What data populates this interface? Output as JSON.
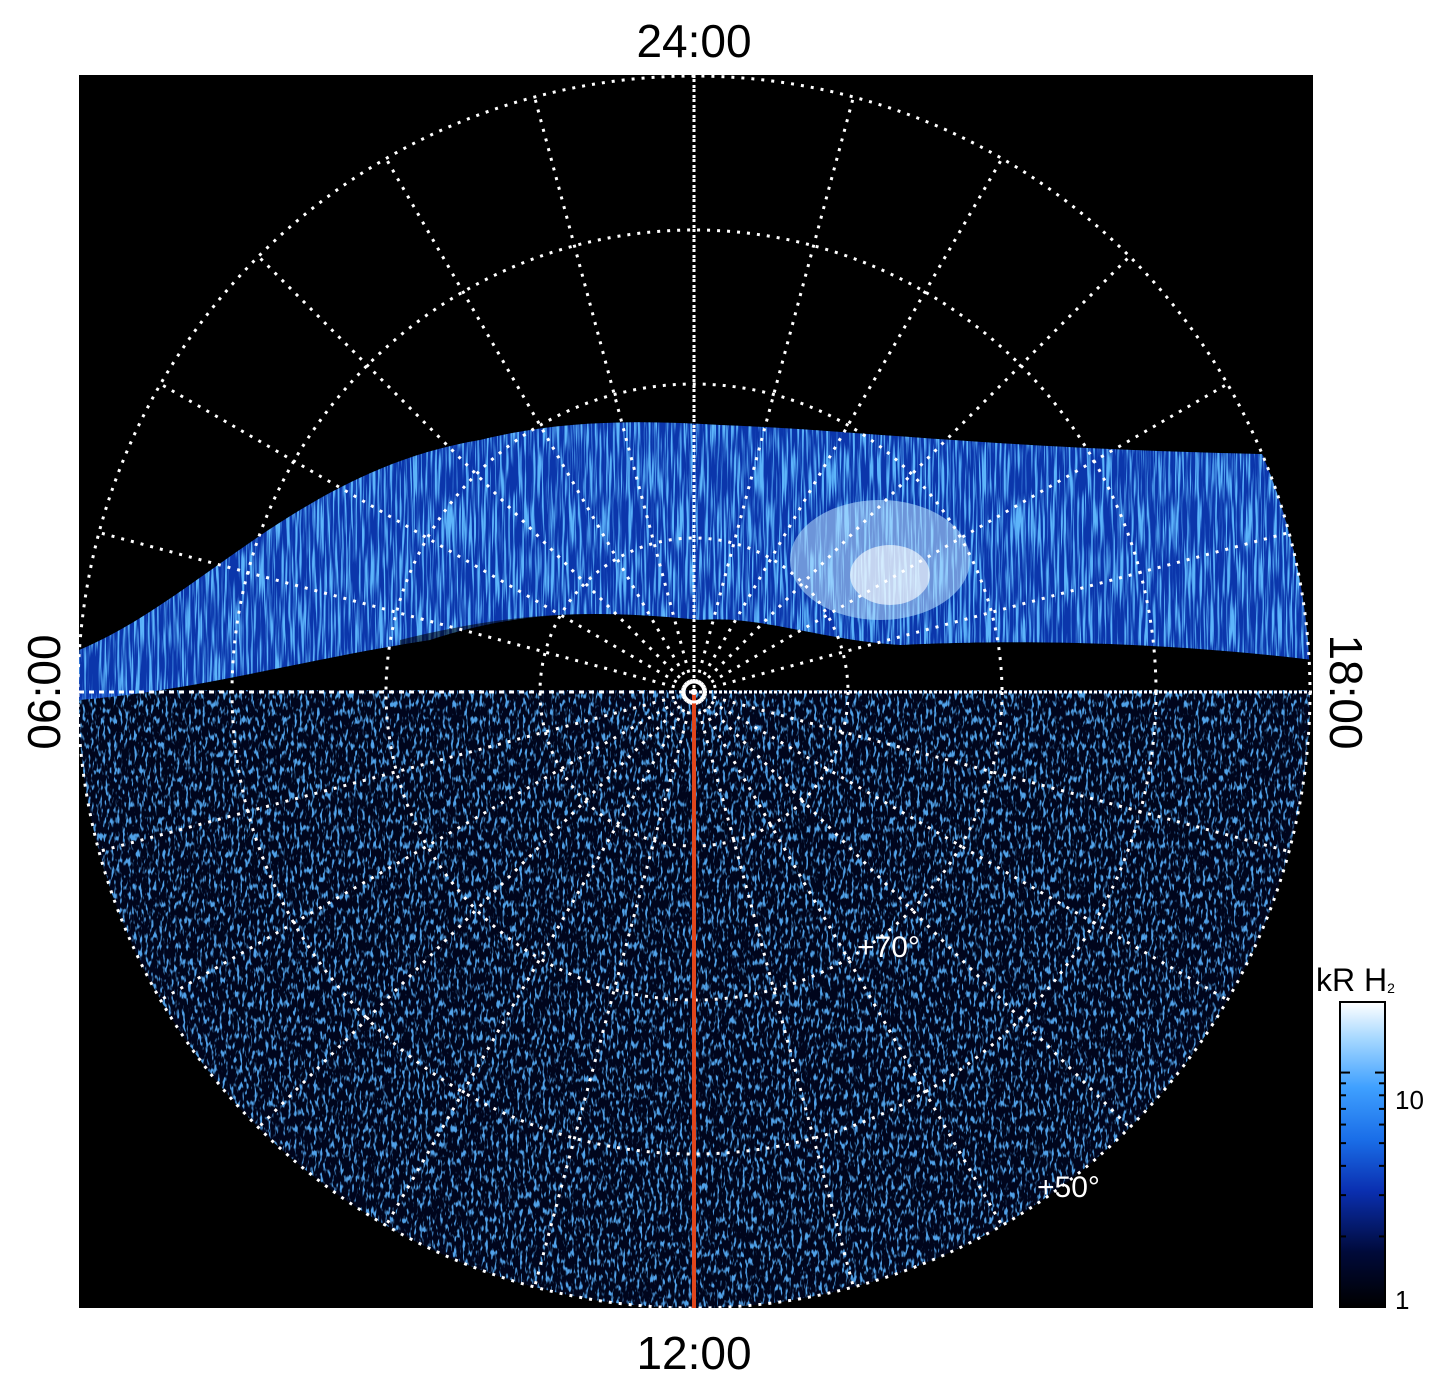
{
  "figure": {
    "local_time_labels": {
      "top": "24:00",
      "bottom": "12:00",
      "left": "06:00",
      "right": "18:00"
    },
    "latitude_labels": [
      "+70°",
      "+50°"
    ],
    "colorbar": {
      "title": "kR H",
      "title_subscript": "2",
      "ticks": [
        "10",
        "1"
      ],
      "scale": "log"
    },
    "colors": {
      "background": "#000000",
      "grid": "#ffffff",
      "reference_line": "#e0461c",
      "colormap": [
        "#000000",
        "#000a3a",
        "#0a2fb0",
        "#1a6ee8",
        "#3fa0ff",
        "#a6d8ff",
        "#ffffff"
      ]
    },
    "icons": {
      "pole_marker": "circle-dot-icon"
    }
  }
}
